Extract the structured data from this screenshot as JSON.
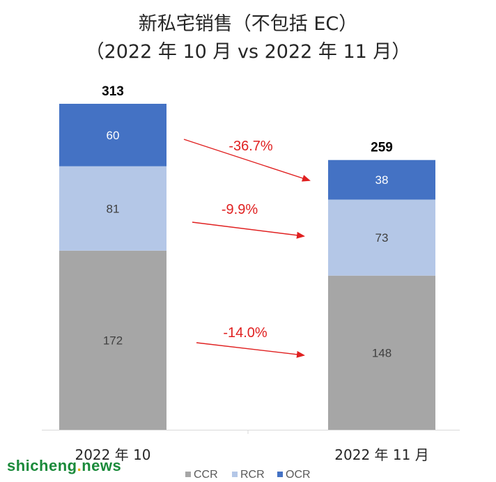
{
  "chart_data": {
    "type": "bar",
    "stacked": true,
    "title": "新私宅销售（不包括 EC）",
    "subtitle": "（2022 年 10 月 vs 2022 年 11 月）",
    "categories": [
      "2022 年 10",
      "2022 年 11 月"
    ],
    "series": [
      {
        "name": "CCR",
        "values": [
          172,
          148
        ],
        "color": "#a6a6a6"
      },
      {
        "name": "RCR",
        "values": [
          81,
          73
        ],
        "color": "#b4c7e7"
      },
      {
        "name": "OCR",
        "values": [
          60,
          38
        ],
        "color": "#4472c4"
      }
    ],
    "totals": [
      "313",
      "259"
    ],
    "changes": [
      {
        "series": "OCR",
        "label": "-36.7%"
      },
      {
        "series": "RCR",
        "label": "-9.9%"
      },
      {
        "series": "CCR",
        "label": "-14.0%"
      }
    ],
    "ylim": [
      0,
      313
    ],
    "grid": false,
    "legend_position": "bottom",
    "colors": {
      "change_arrow": "#e02020",
      "total_text": "#000000",
      "segment_label": "#404040"
    }
  },
  "watermark": {
    "part1": "shicheng",
    "dot": ".",
    "part2": "news"
  }
}
